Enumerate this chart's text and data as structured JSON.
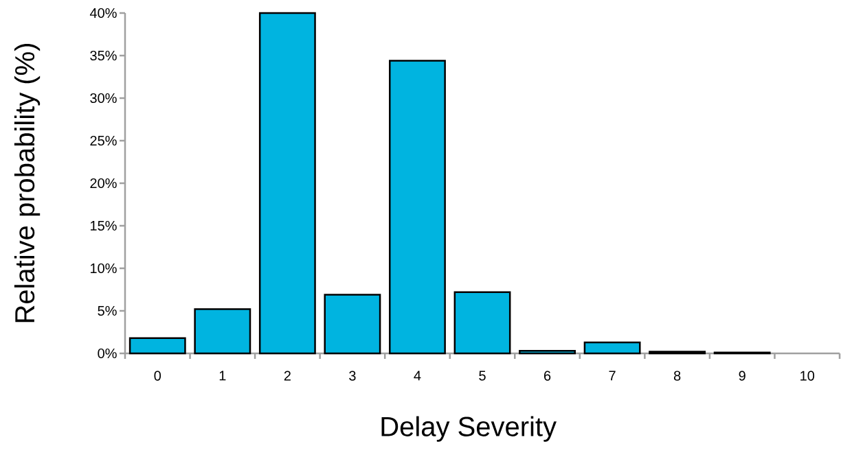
{
  "chart_data": {
    "type": "bar",
    "xlabel": "Delay Severity",
    "ylabel": "Relative probability (%)",
    "categories": [
      "0",
      "1",
      "2",
      "3",
      "4",
      "5",
      "6",
      "7",
      "8",
      "9",
      "10"
    ],
    "values": [
      1.8,
      5.2,
      40,
      6.9,
      34.4,
      7.2,
      0.3,
      1.3,
      0.2,
      0.1,
      null
    ],
    "color": "#00b4e0",
    "ylim": [
      0,
      40
    ],
    "yticks": [
      {
        "value": 0,
        "label": "0%"
      },
      {
        "value": 5,
        "label": "5%"
      },
      {
        "value": 10,
        "label": "10%"
      },
      {
        "value": 15,
        "label": "15%"
      },
      {
        "value": 20,
        "label": "20%"
      },
      {
        "value": 25,
        "label": "25%"
      },
      {
        "value": 30,
        "label": "30%"
      },
      {
        "value": 35,
        "label": "35%"
      },
      {
        "value": 40,
        "label": "40%"
      }
    ],
    "grid": false
  }
}
